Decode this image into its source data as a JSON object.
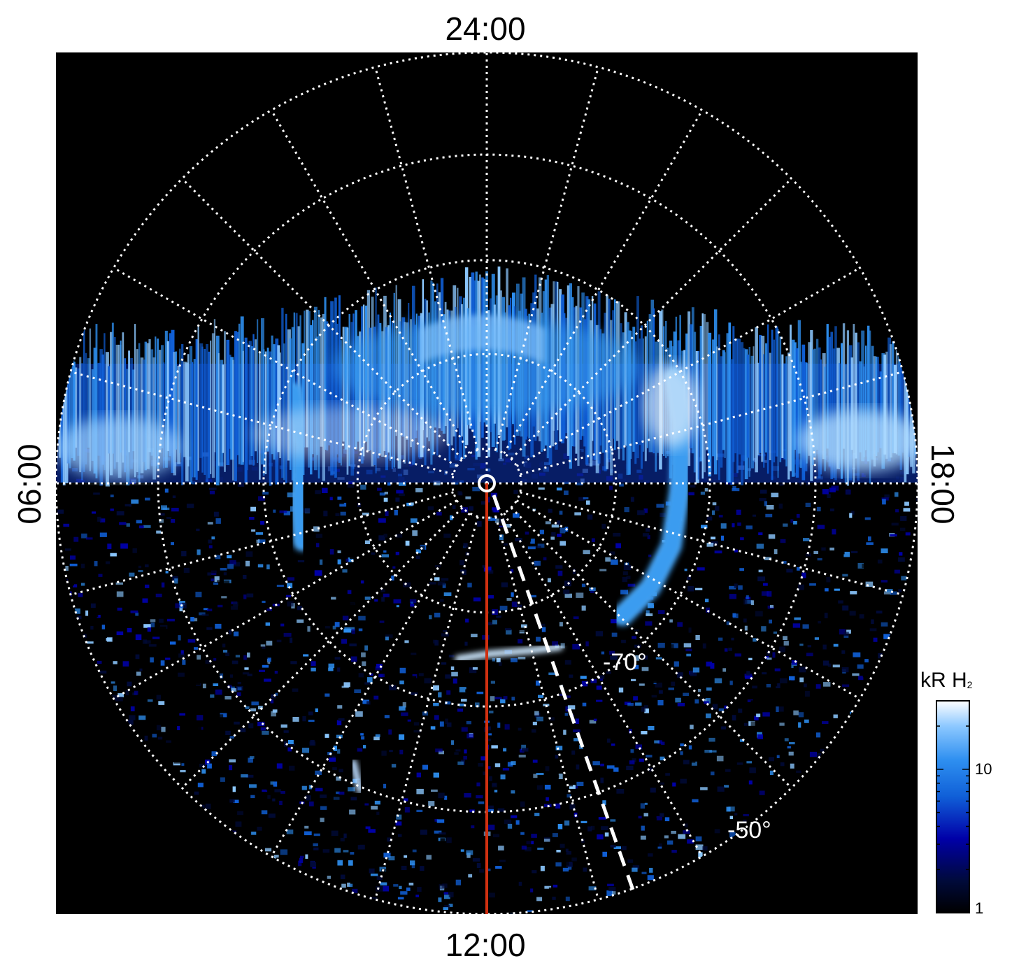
{
  "chart_data": {
    "type": "heatmap",
    "projection": "polar (south pole view)",
    "local_time_labels": {
      "top": "24:00",
      "bottom": "12:00",
      "left": "06:00",
      "right": "18:00"
    },
    "latitude_labels": [
      "-70°",
      "-50°"
    ],
    "colorbar": {
      "title": "kR H",
      "title_subscript": "2",
      "scale": "log",
      "range": [
        1,
        30
      ],
      "ticks": [
        "10",
        "1"
      ],
      "colors": [
        "#000000",
        "#000a3a",
        "#0000a8",
        "#1060d8",
        "#2e8ff0",
        "#8cc8ff",
        "#ffffff"
      ]
    },
    "features": [
      {
        "name": "main auroral oval",
        "intensity_kR": 10
      },
      {
        "name": "dawn-side bright arc",
        "intensity_kR": 20
      },
      {
        "name": "dusk-side bright arc",
        "intensity_kR": 25
      }
    ],
    "grid": true,
    "meridian_line_color": "#d03010"
  }
}
